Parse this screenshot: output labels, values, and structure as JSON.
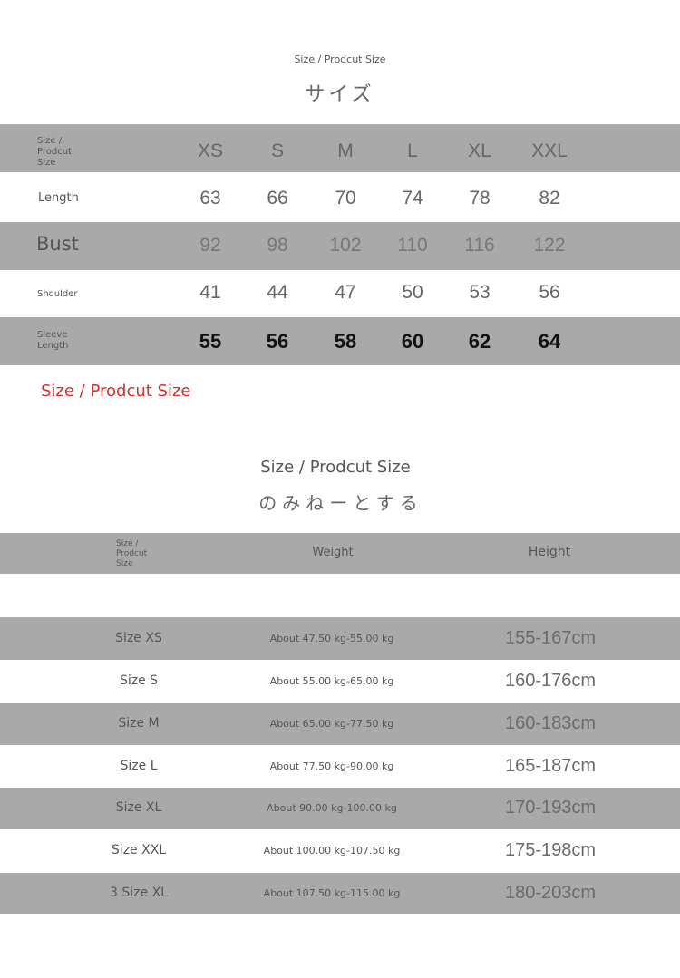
{
  "title1": {
    "subtitle": "Size / Prodcut Size",
    "japanese": "サイズ"
  },
  "table1": {
    "header_label": [
      "Size /",
      "Prodcut",
      "Size"
    ],
    "sizes": [
      "XS",
      "S",
      "M",
      "L",
      "XL",
      "XXL"
    ],
    "rows": [
      {
        "label": "Length",
        "values": [
          "63",
          "66",
          "70",
          "74",
          "78",
          "82"
        ]
      },
      {
        "label": "Bust",
        "values": [
          "92",
          "98",
          "102",
          "110",
          "116",
          "122"
        ]
      },
      {
        "label": "Shoulder",
        "values": [
          "41",
          "44",
          "47",
          "50",
          "53",
          "56"
        ]
      },
      {
        "label": "Sleeve Length",
        "values": [
          "55",
          "56",
          "58",
          "60",
          "62",
          "64"
        ]
      }
    ]
  },
  "red_note": "Size / Prodcut Size",
  "red_color": "#d32f2f",
  "band_color": "#a9a9a9",
  "title2": {
    "subtitle": "Size / Prodcut Size",
    "japanese": "のみねーとする"
  },
  "table2": {
    "header_label": [
      "Size /",
      "Prodcut",
      "Size"
    ],
    "columns": [
      "Weight",
      "Height"
    ],
    "rows": [
      {
        "size": "Size XS",
        "weight": "About 47.50 kg-55.00 kg",
        "height": "155-167cm"
      },
      {
        "size": "Size S",
        "weight": "About 55.00 kg-65.00 kg",
        "height": "160-176cm"
      },
      {
        "size": "Size M",
        "weight": "About 65.00 kg-77.50 kg",
        "height": "160-183cm"
      },
      {
        "size": "Size L",
        "weight": "About 77.50 kg-90.00 kg",
        "height": "165-187cm"
      },
      {
        "size": "Size XL",
        "weight": "About 90.00 kg-100.00 kg",
        "height": "170-193cm"
      },
      {
        "size": "Size XXL",
        "weight": "About 100.00 kg-107.50 kg",
        "height": "175-198cm"
      },
      {
        "size": "3 Size XL",
        "weight": "About 107.50 kg-115.00 kg",
        "height": "180-203cm"
      }
    ]
  }
}
